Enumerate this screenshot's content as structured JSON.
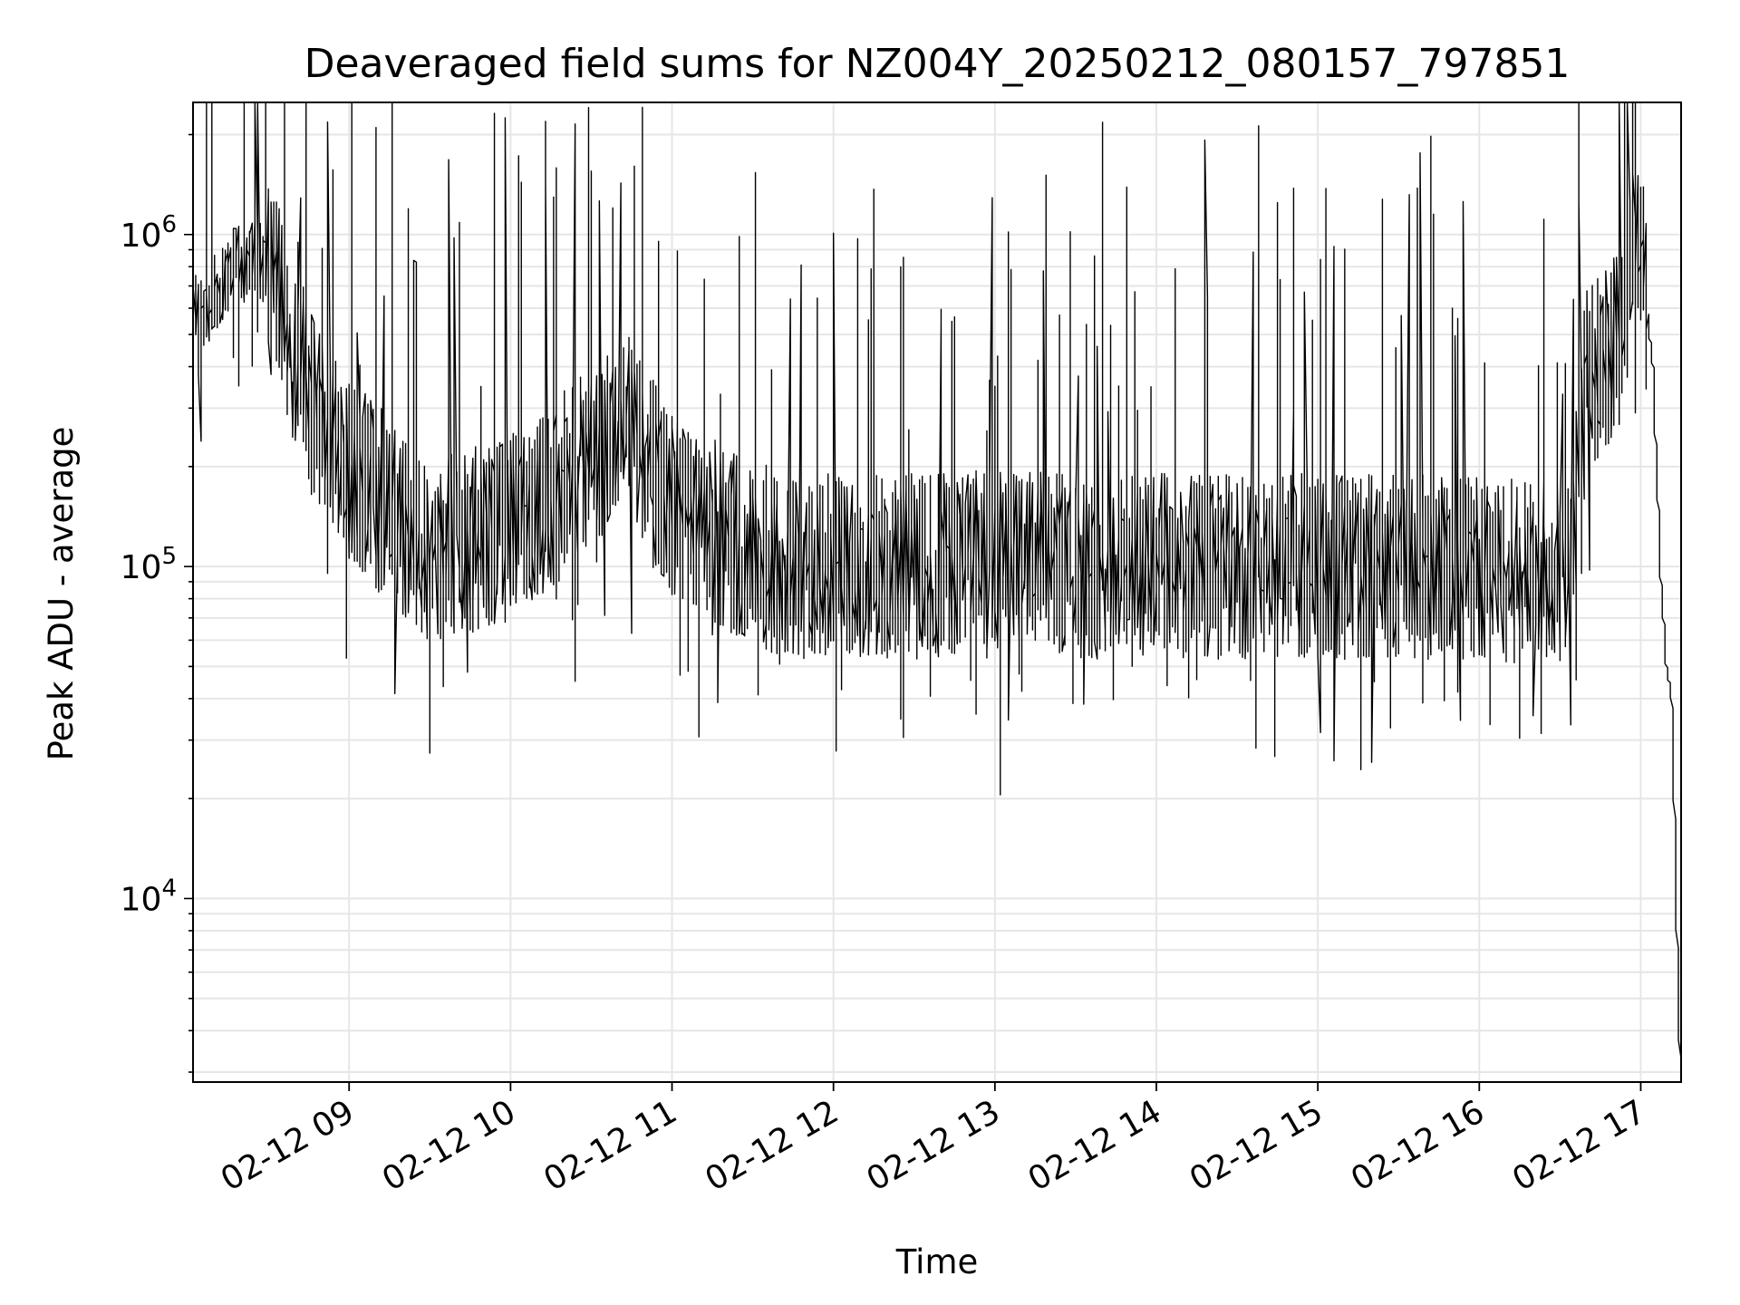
{
  "chart_data": {
    "type": "line",
    "title": "Deaveraged field sums for NZ004Y_20250212_080157_797851",
    "xlabel": "Time",
    "ylabel": "Peak ADU - average",
    "yscale": "log",
    "ylim": [
      2800,
      2500000
    ],
    "xlim": [
      "2025-02-12 08:02",
      "2025-02-12 17:15"
    ],
    "grid": true,
    "line_color": "#000000",
    "grid_color": "#e6e6e6",
    "x_ticks": [
      {
        "label": "02-12 09",
        "value": "2025-02-12 09:00"
      },
      {
        "label": "02-12 10",
        "value": "2025-02-12 10:00"
      },
      {
        "label": "02-12 11",
        "value": "2025-02-12 11:00"
      },
      {
        "label": "02-12 12",
        "value": "2025-02-12 12:00"
      },
      {
        "label": "02-12 13",
        "value": "2025-02-12 13:00"
      },
      {
        "label": "02-12 14",
        "value": "2025-02-12 14:00"
      },
      {
        "label": "02-12 15",
        "value": "2025-02-12 15:00"
      },
      {
        "label": "02-12 16",
        "value": "2025-02-12 16:00"
      },
      {
        "label": "02-12 17",
        "value": "2025-02-12 17:00"
      }
    ],
    "y_ticks": [
      {
        "base": "10",
        "exp": "4",
        "value": 10000
      },
      {
        "base": "10",
        "exp": "5",
        "value": 100000
      },
      {
        "base": "10",
        "exp": "6",
        "value": 1000000
      }
    ],
    "series": [
      {
        "x": [
          "2025-02-12 08:02",
          "2025-02-12 08:10",
          "2025-02-12 08:18",
          "2025-02-12 08:26",
          "2025-02-12 08:33",
          "2025-02-12 08:40",
          "2025-02-12 08:47",
          "2025-02-12 08:54",
          "2025-02-12 09:00",
          "2025-02-12 09:15",
          "2025-02-12 09:30",
          "2025-02-12 09:45",
          "2025-02-12 10:00",
          "2025-02-12 10:15",
          "2025-02-12 10:30",
          "2025-02-12 10:45",
          "2025-02-12 11:00",
          "2025-02-12 11:15",
          "2025-02-12 11:30",
          "2025-02-12 11:45",
          "2025-02-12 12:00",
          "2025-02-12 12:30",
          "2025-02-12 13:00",
          "2025-02-12 13:30",
          "2025-02-12 14:00",
          "2025-02-12 14:30",
          "2025-02-12 15:00",
          "2025-02-12 15:30",
          "2025-02-12 16:00",
          "2025-02-12 16:20",
          "2025-02-12 16:36",
          "2025-02-12 16:40",
          "2025-02-12 16:50",
          "2025-02-12 17:00",
          "2025-02-12 17:05",
          "2025-02-12 17:08",
          "2025-02-12 17:10",
          "2025-02-12 17:12",
          "2025-02-12 17:15"
        ],
        "y": [
          560000,
          650000,
          800000,
          850000,
          750000,
          450000,
          300000,
          250000,
          200000,
          150000,
          110000,
          120000,
          130000,
          160000,
          210000,
          260000,
          150000,
          130000,
          110000,
          100000,
          100000,
          100000,
          105000,
          100000,
          100000,
          100000,
          100000,
          100000,
          100000,
          95000,
          100000,
          350000,
          450000,
          1000000,
          400000,
          90000,
          50000,
          40000,
          3300
        ]
      }
    ]
  }
}
